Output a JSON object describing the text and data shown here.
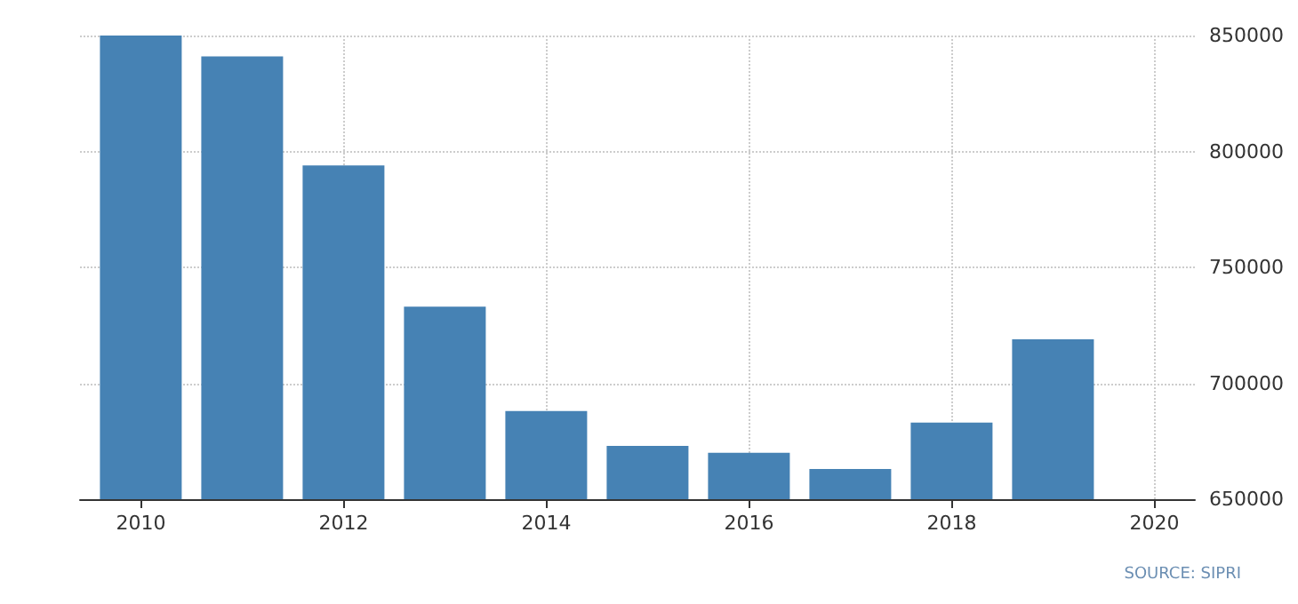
{
  "chart_data": {
    "type": "bar",
    "x": [
      2010,
      2011,
      2012,
      2013,
      2014,
      2015,
      2016,
      2017,
      2018,
      2019
    ],
    "values": [
      850000,
      841000,
      794000,
      733000,
      688000,
      673000,
      670000,
      663000,
      683000,
      719000
    ],
    "color": "#4682b4",
    "xlim": [
      2009.4,
      2020.4
    ],
    "xticks": [
      2010,
      2012,
      2014,
      2016,
      2018,
      2020
    ],
    "ylim": [
      650000,
      850000
    ],
    "yticks": [
      650000,
      700000,
      750000,
      800000,
      850000
    ],
    "grid": true,
    "annotations": [
      "SOURCE: SIPRI"
    ]
  }
}
